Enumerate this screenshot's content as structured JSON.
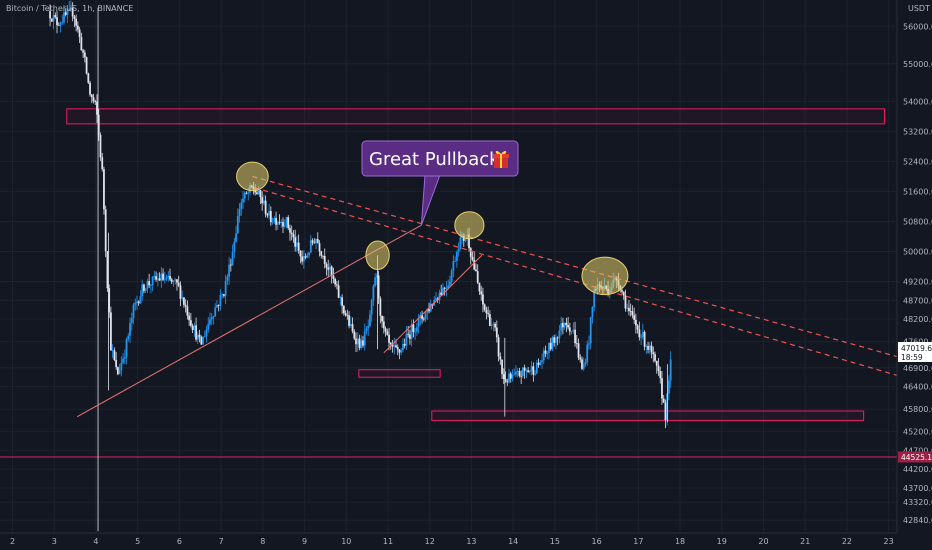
{
  "header": {
    "symbol": "Bitcoin / TetherUS, 1h, BINANCE",
    "quote": "USDT"
  },
  "colors": {
    "background": "#131722",
    "candle_up": "#2196f3",
    "candle_down": "#e0e3eb",
    "trendline": "#e57373",
    "resistance_dashed": "#ef5350",
    "zone_border": "#e91e63",
    "level_line": "#e91e63",
    "highlight": "#e6cf6b",
    "callout_bg": "#5b2c83",
    "callout_border": "#9c6ad6",
    "price_badge": "#9b2146"
  },
  "callout": {
    "text": "Great Pullback",
    "icon": "gift-icon",
    "glyph": "🎁"
  },
  "price_badges": {
    "current_price": "47019.63",
    "countdown": "18:59",
    "level_price": "44525.15"
  },
  "chart_data": {
    "type": "candlestick",
    "title": "Bitcoin / TetherUS, 1h, BINANCE",
    "x_unit": "day of month",
    "x_ticks": [
      2,
      3,
      4,
      5,
      6,
      7,
      8,
      9,
      10,
      11,
      12,
      13,
      14,
      15,
      16,
      17,
      18,
      19,
      20,
      21,
      22,
      23
    ],
    "xlim": [
      1.7,
      23.2
    ],
    "y_ticks": [
      42840,
      43320,
      43700,
      44200,
      44700,
      45200,
      45800,
      46400,
      46900,
      47600,
      48200,
      48700,
      49200,
      50000,
      50800,
      51600,
      52400,
      53200,
      54000,
      55000,
      56000
    ],
    "ylim": [
      42500,
      56700
    ],
    "price_path": [
      [
        2.9,
        56400
      ],
      [
        3.1,
        56100
      ],
      [
        3.5,
        56400
      ],
      [
        3.75,
        55200
      ],
      [
        3.9,
        54200
      ],
      [
        4.05,
        53800
      ],
      [
        4.2,
        52000
      ],
      [
        4.3,
        49500
      ],
      [
        4.4,
        47500
      ],
      [
        4.55,
        46700
      ],
      [
        4.75,
        47400
      ],
      [
        4.95,
        48500
      ],
      [
        5.2,
        49100
      ],
      [
        5.6,
        49300
      ],
      [
        6.0,
        49100
      ],
      [
        6.3,
        48200
      ],
      [
        6.55,
        47500
      ],
      [
        6.8,
        48300
      ],
      [
        7.1,
        48900
      ],
      [
        7.3,
        49900
      ],
      [
        7.5,
        51300
      ],
      [
        7.8,
        51700
      ],
      [
        8.0,
        51400
      ],
      [
        8.2,
        50900
      ],
      [
        8.6,
        50800
      ],
      [
        9.0,
        49700
      ],
      [
        9.3,
        50400
      ],
      [
        9.6,
        49600
      ],
      [
        9.9,
        48700
      ],
      [
        10.2,
        47800
      ],
      [
        10.4,
        47500
      ],
      [
        10.6,
        48100
      ],
      [
        10.75,
        49500
      ],
      [
        10.9,
        48000
      ],
      [
        11.1,
        47400
      ],
      [
        11.3,
        47300
      ],
      [
        11.6,
        47900
      ],
      [
        11.9,
        48300
      ],
      [
        12.2,
        48800
      ],
      [
        12.5,
        49200
      ],
      [
        12.75,
        50300
      ],
      [
        12.95,
        50400
      ],
      [
        13.1,
        49600
      ],
      [
        13.3,
        48600
      ],
      [
        13.6,
        47900
      ],
      [
        13.8,
        46600
      ],
      [
        14.0,
        46600
      ],
      [
        14.3,
        46800
      ],
      [
        14.6,
        46900
      ],
      [
        15.0,
        47600
      ],
      [
        15.3,
        48200
      ],
      [
        15.5,
        47800
      ],
      [
        15.7,
        46800
      ],
      [
        15.85,
        47600
      ],
      [
        16.0,
        49100
      ],
      [
        16.3,
        49000
      ],
      [
        16.55,
        49300
      ],
      [
        16.8,
        48400
      ],
      [
        17.1,
        47800
      ],
      [
        17.35,
        47300
      ],
      [
        17.55,
        46600
      ],
      [
        17.7,
        45600
      ],
      [
        17.8,
        47000
      ]
    ],
    "annotations": {
      "resistance_zone": {
        "y_low": 53400,
        "y_high": 53800,
        "x_start": 3.3,
        "x_end": 22.9
      },
      "support_zone_1": {
        "y_low": 46650,
        "y_high": 46850,
        "x_start": 10.3,
        "x_end": 12.25
      },
      "support_zone_2": {
        "y_low": 45500,
        "y_high": 45750,
        "x_start": 12.05,
        "x_end": 22.4
      },
      "level_line": {
        "y": 44525.15
      },
      "ascending_trendline_1": [
        [
          3.55,
          45600
        ],
        [
          11.8,
          50700
        ]
      ],
      "ascending_trendline_2": [
        [
          10.9,
          47300
        ],
        [
          13.25,
          49900
        ]
      ],
      "descending_dashed_1": [
        [
          7.75,
          52000
        ],
        [
          23.2,
          47200
        ]
      ],
      "descending_dashed_2": [
        [
          7.8,
          51700
        ],
        [
          23.2,
          46700
        ]
      ],
      "highlight_ellipses": [
        {
          "x": 7.75,
          "y": 52000,
          "rx": 0.38,
          "ry": 380
        },
        {
          "x": 10.75,
          "y": 49900,
          "rx": 0.28,
          "ry": 380
        },
        {
          "x": 12.95,
          "y": 50700,
          "rx": 0.35,
          "ry": 360
        },
        {
          "x": 16.2,
          "y": 49350,
          "rx": 0.55,
          "ry": 500
        }
      ],
      "callout_pointer_to": {
        "x": 11.8,
        "y": 50700
      }
    }
  }
}
